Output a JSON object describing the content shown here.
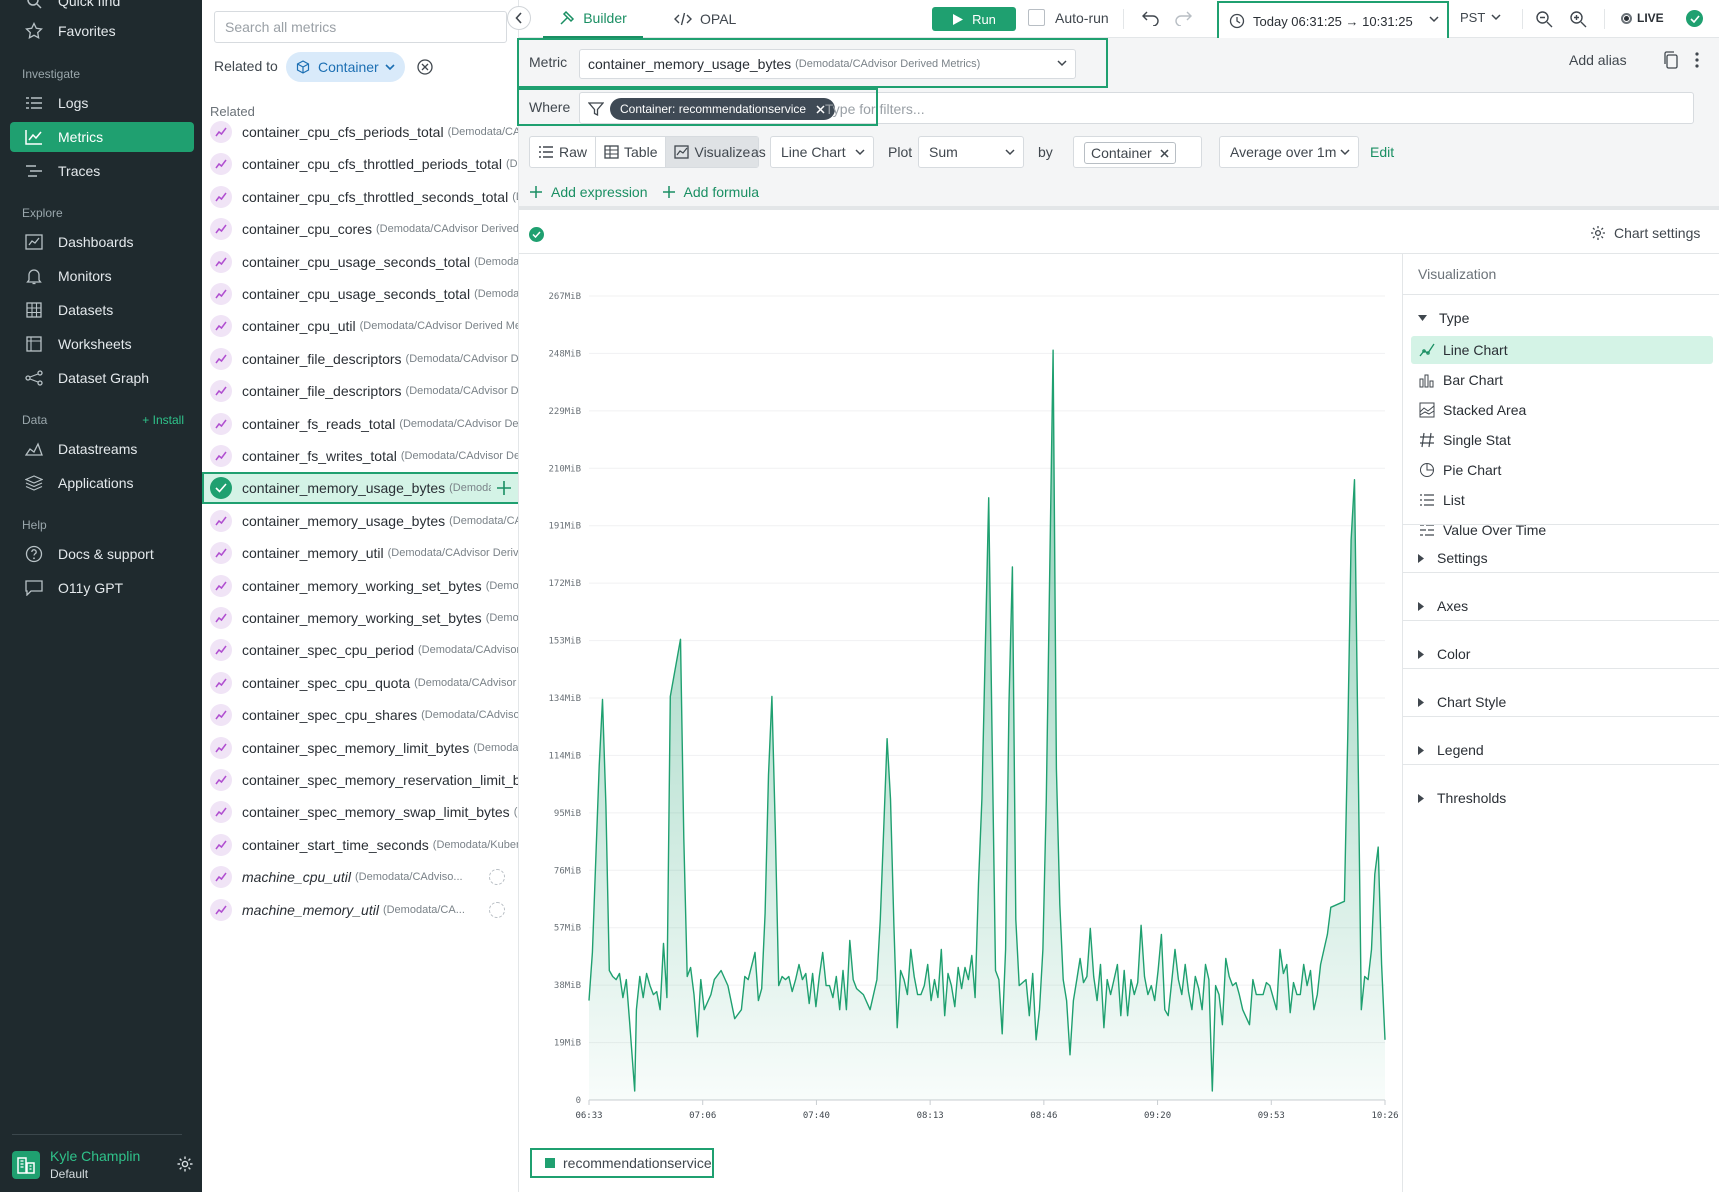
{
  "nav": {
    "quick_find": "Quick find",
    "favorites": "Favorites",
    "investigate": "Investigate",
    "logs": "Logs",
    "metrics": "Metrics",
    "traces": "Traces",
    "explore": "Explore",
    "dashboards": "Dashboards",
    "monitors": "Monitors",
    "datasets": "Datasets",
    "worksheets": "Worksheets",
    "dataset_graph": "Dataset Graph",
    "data": "Data",
    "install": "+ Install",
    "datastreams": "Datastreams",
    "applications": "Applications",
    "help": "Help",
    "docs": "Docs & support",
    "gpt": "O11y GPT",
    "user_name": "Kyle Champlin",
    "user_org": "Default"
  },
  "metric_list": {
    "search_placeholder": "Search all metrics",
    "related_to": "Related to",
    "chip": "Container",
    "related_heading": "Related",
    "items": [
      {
        "name": "container_cpu_cfs_periods_total",
        "source": "(Demodata/CAdvisor Derived Metrics)"
      },
      {
        "name": "container_cpu_cfs_throttled_periods_total",
        "source": "(Demodata/CAdvisor Derived Metrics)"
      },
      {
        "name": "container_cpu_cfs_throttled_seconds_total",
        "source": "(Demodata/CAdvisor Derived Metrics)"
      },
      {
        "name": "container_cpu_cores",
        "source": "(Demodata/CAdvisor Derived Metrics)"
      },
      {
        "name": "container_cpu_usage_seconds_total",
        "source": "(Demodata/CAdvisor Derived Metrics)"
      },
      {
        "name": "container_cpu_usage_seconds_total",
        "source": "(Demodata/CAdvisor Derived Metrics)"
      },
      {
        "name": "container_cpu_util",
        "source": "(Demodata/CAdvisor Derived Metrics)"
      },
      {
        "name": "container_file_descriptors",
        "source": "(Demodata/CAdvisor Derived Metrics)"
      },
      {
        "name": "container_file_descriptors",
        "source": "(Demodata/CAdvisor Derived Metrics)"
      },
      {
        "name": "container_fs_reads_total",
        "source": "(Demodata/CAdvisor Derived Metrics)"
      },
      {
        "name": "container_fs_writes_total",
        "source": "(Demodata/CAdvisor Derived Metrics)"
      },
      {
        "name": "container_memory_usage_bytes",
        "source": "(Demodata/CAdvisor Derived Metrics)",
        "selected": true
      },
      {
        "name": "container_memory_usage_bytes",
        "source": "(Demodata/CAdvisor Derived Metrics)"
      },
      {
        "name": "container_memory_util",
        "source": "(Demodata/CAdvisor Derived Metrics)"
      },
      {
        "name": "container_memory_working_set_bytes",
        "source": "(Demodata/CAdvisor Derived Metrics)"
      },
      {
        "name": "container_memory_working_set_bytes",
        "source": "(Demodata/CAdvisor Derived Metrics)"
      },
      {
        "name": "container_spec_cpu_period",
        "source": "(Demodata/CAdvisor Derived Metrics)"
      },
      {
        "name": "container_spec_cpu_quota",
        "source": "(Demodata/CAdvisor Derived Metrics)"
      },
      {
        "name": "container_spec_cpu_shares",
        "source": "(Demodata/CAdvisor Derived Metrics)"
      },
      {
        "name": "container_spec_memory_limit_bytes",
        "source": "(Demodata/CAdvisor Derived Metrics)"
      },
      {
        "name": "container_spec_memory_reservation_limit_bytes",
        "source": "(Demodata/CAdvisor Derived Metrics)"
      },
      {
        "name": "container_spec_memory_swap_limit_bytes",
        "source": "(Demodata/CAdvisor Derived Metrics)"
      },
      {
        "name": "container_start_time_seconds",
        "source": "(Demodata/Kubernetes Metrics)"
      },
      {
        "name": "machine_cpu_util",
        "source": "(Demodata/CAdviso...",
        "italic": true
      },
      {
        "name": "machine_memory_util",
        "source": "(Demodata/CA...",
        "italic": true
      }
    ]
  },
  "topbar": {
    "builder": "Builder",
    "opal": "OPAL",
    "run": "Run",
    "autorun": "Auto-run",
    "time_range": "Today 06:31:25 → 10:31:25",
    "timezone": "PST",
    "live": "LIVE"
  },
  "query": {
    "metric_label": "Metric",
    "metric_value": "container_memory_usage_bytes",
    "metric_source": "(Demodata/CAdvisor Derived Metrics)",
    "add_alias": "Add alias",
    "where_label": "Where",
    "filter_chip": "Container: recommendationservice",
    "filter_placeholder": "Type for filters...",
    "raw": "Raw",
    "table": "Table",
    "visualize": "Visualize",
    "as": "as",
    "chart_type": "Line Chart",
    "plot": "Plot",
    "agg": "Sum",
    "by": "by",
    "group_tag": "Container",
    "window": "Average over 1m",
    "edit": "Edit",
    "add_expression": "Add expression",
    "add_formula": "Add formula"
  },
  "chart_settings": "Chart settings",
  "viz_panel": {
    "title": "Visualization",
    "type_heading": "Type",
    "types": [
      "Line Chart",
      "Bar Chart",
      "Stacked Area",
      "Single Stat",
      "Pie Chart",
      "List",
      "Value Over Time"
    ],
    "selected_type": "Line Chart",
    "sections": [
      "Settings",
      "Axes",
      "Color",
      "Chart Style",
      "Legend",
      "Thresholds"
    ]
  },
  "colors": {
    "accent": "#1fa070",
    "nav_bg": "#1f2a2e"
  },
  "chart_data": {
    "type": "area",
    "x_ticks": [
      "06:33",
      "07:06",
      "07:40",
      "08:13",
      "08:46",
      "09:20",
      "09:53",
      "10:26"
    ],
    "y_ticks": [
      "0",
      "19MiB",
      "38MiB",
      "57MiB",
      "76MiB",
      "95MiB",
      "114MiB",
      "134MiB",
      "153MiB",
      "172MiB",
      "191MiB",
      "210MiB",
      "229MiB",
      "248MiB",
      "267MiB"
    ],
    "y_unit": "MiB",
    "ylim": [
      0,
      267
    ],
    "x_minutes_range": [
      393,
      628
    ],
    "series": [
      {
        "name": "recommendationservice",
        "points": [
          [
            393.0,
            33
          ],
          [
            394.0,
            49
          ],
          [
            396.0,
            111
          ],
          [
            397.0,
            133
          ],
          [
            398.0,
            98
          ],
          [
            399.0,
            43
          ],
          [
            400.0,
            41
          ],
          [
            401.0,
            40
          ],
          [
            402.0,
            42
          ],
          [
            403.0,
            34
          ],
          [
            404.0,
            40
          ],
          [
            405.0,
            26
          ],
          [
            406.5,
            3
          ],
          [
            407.0,
            30
          ],
          [
            408.0,
            41
          ],
          [
            409.0,
            34
          ],
          [
            410.0,
            42
          ],
          [
            411.0,
            38
          ],
          [
            412.0,
            35
          ],
          [
            413.0,
            36
          ],
          [
            414.0,
            30
          ],
          [
            415.0,
            52
          ],
          [
            416.0,
            34
          ],
          [
            417.0,
            134
          ],
          [
            420.0,
            153
          ],
          [
            421.0,
            87
          ],
          [
            422.0,
            41
          ],
          [
            423.0,
            44
          ],
          [
            424.0,
            35
          ],
          [
            425.0,
            21
          ],
          [
            426.0,
            40
          ],
          [
            427.0,
            30
          ],
          [
            429.0,
            35
          ],
          [
            430.0,
            40
          ],
          [
            432.0,
            43
          ],
          [
            434.0,
            38
          ],
          [
            436.0,
            27
          ],
          [
            438.0,
            30
          ],
          [
            439.0,
            41
          ],
          [
            440.0,
            40
          ],
          [
            442.0,
            49
          ],
          [
            443.0,
            33
          ],
          [
            444.0,
            37
          ],
          [
            445.0,
            62
          ],
          [
            446.0,
            108
          ],
          [
            447.0,
            134
          ],
          [
            448.0,
            90
          ],
          [
            449.0,
            38
          ],
          [
            450.0,
            41
          ],
          [
            451.0,
            40
          ],
          [
            452.0,
            41
          ],
          [
            453.0,
            36
          ],
          [
            454.0,
            40
          ],
          [
            455.0,
            45
          ],
          [
            456.0,
            40
          ],
          [
            457.0,
            42
          ],
          [
            458.0,
            32
          ],
          [
            459.0,
            42
          ],
          [
            460.0,
            31
          ],
          [
            461.0,
            41
          ],
          [
            462.0,
            49
          ],
          [
            463.0,
            38
          ],
          [
            464.0,
            38
          ],
          [
            465.0,
            34
          ],
          [
            466.0,
            41
          ],
          [
            467.0,
            30
          ],
          [
            468.0,
            43
          ],
          [
            469.0,
            30
          ],
          [
            470.0,
            53
          ],
          [
            471.0,
            40
          ],
          [
            472.0,
            37
          ],
          [
            474.0,
            35
          ],
          [
            476.0,
            30
          ],
          [
            478.0,
            40
          ],
          [
            479.0,
            60
          ],
          [
            480.0,
            90
          ],
          [
            481.0,
            120
          ],
          [
            482.0,
            100
          ],
          [
            483.0,
            58
          ],
          [
            484.0,
            24
          ],
          [
            485.0,
            43
          ],
          [
            486.0,
            40
          ],
          [
            487.0,
            35
          ],
          [
            488.0,
            50
          ],
          [
            489.0,
            41
          ],
          [
            490.0,
            35
          ],
          [
            491.0,
            35
          ],
          [
            492.0,
            38
          ],
          [
            493.0,
            45
          ],
          [
            494.0,
            33
          ],
          [
            495.0,
            40
          ],
          [
            496.0,
            34
          ],
          [
            497.0,
            50
          ],
          [
            498.0,
            28
          ],
          [
            499.0,
            42
          ],
          [
            500.0,
            38
          ],
          [
            501.0,
            31
          ],
          [
            502.0,
            44
          ],
          [
            503.0,
            37
          ],
          [
            504.0,
            44
          ],
          [
            505.0,
            40
          ],
          [
            506.0,
            48
          ],
          [
            507.0,
            34
          ],
          [
            508.0,
            72
          ],
          [
            509.0,
            100
          ],
          [
            510.0,
            150
          ],
          [
            511.0,
            200
          ],
          [
            512.0,
            120
          ],
          [
            513.0,
            43
          ],
          [
            514.0,
            40
          ],
          [
            515.0,
            22
          ],
          [
            516.0,
            50
          ],
          [
            517.0,
            132
          ],
          [
            518.0,
            177
          ],
          [
            519.0,
            60
          ],
          [
            520.0,
            38
          ],
          [
            522.0,
            40
          ],
          [
            523.0,
            28
          ],
          [
            524.0,
            42
          ],
          [
            525.0,
            20
          ],
          [
            526.0,
            30
          ],
          [
            527.0,
            50
          ],
          [
            528.0,
            100
          ],
          [
            529.0,
            175
          ],
          [
            530.0,
            249
          ],
          [
            531.0,
            110
          ],
          [
            532.0,
            65
          ],
          [
            533.0,
            40
          ],
          [
            534.0,
            33
          ],
          [
            535.0,
            15
          ],
          [
            536.0,
            33
          ],
          [
            537.0,
            40
          ],
          [
            538.0,
            47
          ],
          [
            539.0,
            39
          ],
          [
            540.0,
            41
          ],
          [
            541.0,
            57
          ],
          [
            542.0,
            41
          ],
          [
            543.0,
            33
          ],
          [
            544.0,
            45
          ],
          [
            545.0,
            24
          ],
          [
            546.0,
            40
          ],
          [
            547.0,
            35
          ],
          [
            548.0,
            40
          ],
          [
            549.0,
            45
          ],
          [
            550.0,
            28
          ],
          [
            551.0,
            43
          ],
          [
            552.0,
            28
          ],
          [
            553.0,
            40
          ],
          [
            554.0,
            35
          ],
          [
            555.0,
            39
          ],
          [
            556.0,
            58
          ],
          [
            557.0,
            41
          ],
          [
            558.0,
            35
          ],
          [
            559.0,
            38
          ],
          [
            560.0,
            33
          ],
          [
            561.0,
            43
          ],
          [
            562.0,
            55
          ],
          [
            563.0,
            30
          ],
          [
            564.0,
            28
          ],
          [
            566.0,
            50
          ],
          [
            567.0,
            40
          ],
          [
            568.0,
            35
          ],
          [
            569.0,
            45
          ],
          [
            570.0,
            36
          ],
          [
            571.0,
            30
          ],
          [
            572.0,
            41
          ],
          [
            573.0,
            37
          ],
          [
            574.0,
            30
          ],
          [
            575.0,
            45
          ],
          [
            576.0,
            40
          ],
          [
            577.0,
            3
          ],
          [
            578.0,
            38
          ],
          [
            579.0,
            35
          ],
          [
            580.0,
            25
          ],
          [
            581.0,
            47
          ],
          [
            582.0,
            41
          ],
          [
            583.0,
            38
          ],
          [
            584.0,
            39
          ],
          [
            585.0,
            35
          ],
          [
            586.0,
            30
          ],
          [
            588.0,
            25
          ],
          [
            589.0,
            40
          ],
          [
            590.0,
            35
          ],
          [
            592.0,
            35
          ],
          [
            593.0,
            39
          ],
          [
            594.0,
            38
          ],
          [
            596.0,
            30
          ],
          [
            597.0,
            50
          ],
          [
            598.0,
            42
          ],
          [
            599.0,
            45
          ],
          [
            600.0,
            29
          ],
          [
            601.0,
            39
          ],
          [
            602.0,
            35
          ],
          [
            603.0,
            35
          ],
          [
            604.0,
            45
          ],
          [
            605.0,
            38
          ],
          [
            606.0,
            43
          ],
          [
            607.0,
            30
          ],
          [
            608.0,
            35
          ],
          [
            609.0,
            45
          ],
          [
            610.0,
            50
          ],
          [
            611.0,
            55
          ],
          [
            612.0,
            64
          ],
          [
            614.0,
            65
          ],
          [
            616.0,
            66
          ],
          [
            617.0,
            120
          ],
          [
            618.0,
            186
          ],
          [
            619.0,
            206
          ],
          [
            620.0,
            120
          ],
          [
            621.0,
            30
          ],
          [
            622.0,
            41
          ],
          [
            623.0,
            40
          ],
          [
            624.0,
            50
          ],
          [
            625.0,
            75
          ],
          [
            626.0,
            84
          ],
          [
            627.0,
            45
          ],
          [
            628.0,
            20
          ]
        ]
      }
    ]
  }
}
